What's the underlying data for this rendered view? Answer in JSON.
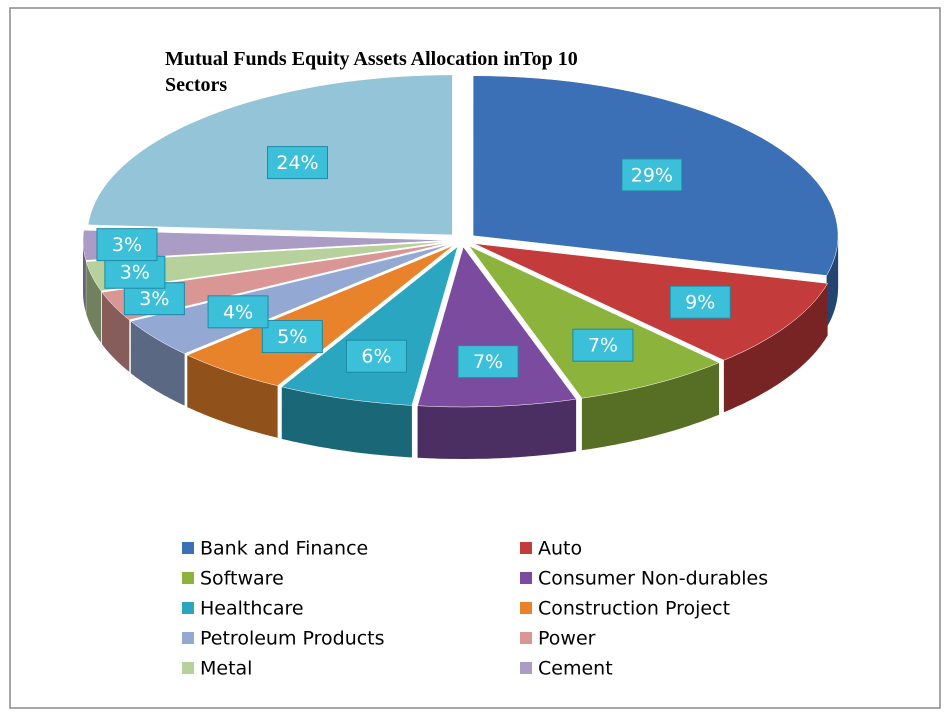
{
  "chart_data": {
    "type": "pie",
    "title": "Mutual Funds Equity Assets Allocation inTop 10 Sectors",
    "categories": [
      "Bank and Finance",
      "Auto",
      "Software",
      "Consumer Non-durables",
      "Healthcare",
      "Construction Project",
      "Petroleum Products",
      "Power",
      "Metal",
      "Cement",
      null
    ],
    "values": [
      29,
      9,
      7,
      7,
      6,
      5,
      4,
      3,
      3,
      3,
      24
    ],
    "value_labels": [
      "29%",
      "9%",
      "7%",
      "7%",
      "6%",
      "5%",
      "4%",
      "3%",
      "3%",
      "3%",
      "24%"
    ],
    "colors": [
      "#3b6fb6",
      "#c43b3b",
      "#8cb43d",
      "#7a4b9f",
      "#2ba6c1",
      "#e8832b",
      "#93a9d4",
      "#d99694",
      "#b6d19b",
      "#ab9cc5",
      "#94c4d7"
    ]
  }
}
